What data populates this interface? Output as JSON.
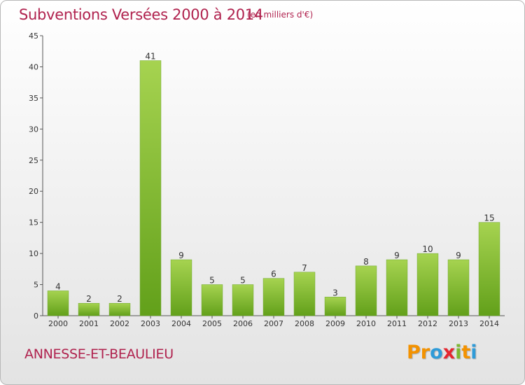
{
  "header": {
    "title": "Subventions Versées 2000 à 2014",
    "subtitle": "(en milliers d'€)"
  },
  "footer": {
    "commune": "ANNESSE-ET-BEAULIEU",
    "logo": {
      "letters": [
        "P",
        "r",
        "o",
        "x",
        "i",
        "t",
        "i"
      ],
      "colors": [
        "#f39200",
        "#f39200",
        "#2f9bd8",
        "#e5262f",
        "#7cb82f",
        "#f39200",
        "#2f9bd8"
      ]
    }
  },
  "chart_data": {
    "type": "bar",
    "categories": [
      "2000",
      "2001",
      "2002",
      "2003",
      "2004",
      "2005",
      "2006",
      "2007",
      "2008",
      "2009",
      "2010",
      "2011",
      "2012",
      "2013",
      "2014"
    ],
    "values": [
      4,
      2,
      2,
      41,
      9,
      5,
      5,
      6,
      7,
      3,
      8,
      9,
      10,
      9,
      15
    ],
    "data_labels": [
      "4",
      "2",
      "2",
      "41",
      "9",
      "5",
      "5",
      "6",
      "7",
      "3",
      "8",
      "9",
      "10",
      "9",
      "15"
    ],
    "y_ticks": [
      "0",
      "5",
      "10",
      "15",
      "20",
      "25",
      "30",
      "35",
      "40",
      "45"
    ],
    "ylim": [
      0,
      45
    ],
    "grid": false,
    "bar_color_top": "#a6d350",
    "bar_color_bottom": "#62a01a",
    "title": "Subventions Versées 2000 à 2014",
    "xlabel": "",
    "ylabel": ""
  }
}
